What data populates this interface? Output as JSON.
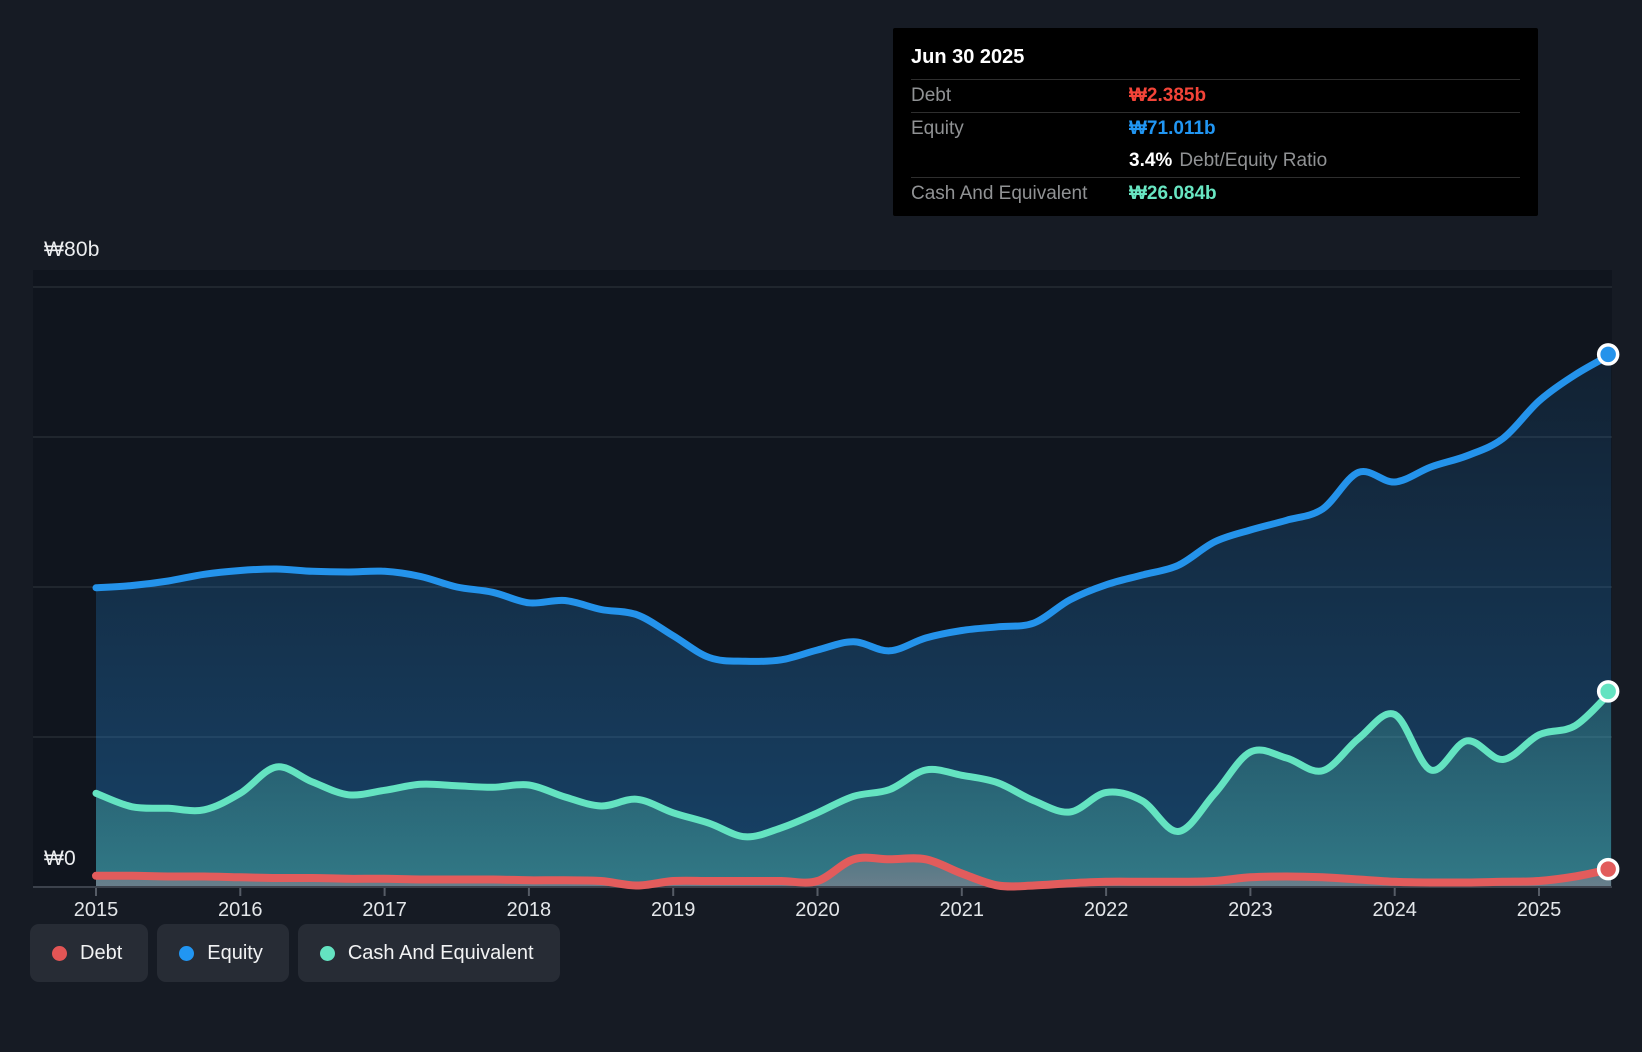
{
  "tooltip": {
    "date": "Jun 30 2025",
    "debt_label": "Debt",
    "debt_value": "₩2.385b",
    "debt_color": "#f34438",
    "equity_label": "Equity",
    "equity_value": "₩71.011b",
    "equity_color": "#2196f3",
    "ratio_value": "3.4%",
    "ratio_label": "Debt/Equity Ratio",
    "cash_label": "Cash And Equivalent",
    "cash_value": "₩26.084b",
    "cash_color": "#68e6c2"
  },
  "legend": {
    "items": [
      {
        "label": "Debt",
        "color": "#e25555"
      },
      {
        "label": "Equity",
        "color": "#2196f3"
      },
      {
        "label": "Cash And Equivalent",
        "color": "#64e3c1"
      }
    ]
  },
  "axes": {
    "y_top_label": "₩80b",
    "y_zero_label": "₩0",
    "x_labels": [
      "2015",
      "2016",
      "2017",
      "2018",
      "2019",
      "2020",
      "2021",
      "2022",
      "2023",
      "2024",
      "2025"
    ]
  },
  "chart_data": {
    "type": "area",
    "title": "Debt, Equity and Cash history (₩ billions)",
    "ylim": [
      0,
      80
    ],
    "xlim": [
      2015,
      2025.5
    ],
    "grid": "horizontal",
    "gridline_values": [
      80,
      60,
      40,
      20
    ],
    "legend_position": "bottom-left",
    "x": [
      2015.0,
      2015.25,
      2015.5,
      2015.75,
      2016.0,
      2016.25,
      2016.5,
      2016.75,
      2017.0,
      2017.25,
      2017.5,
      2017.75,
      2018.0,
      2018.25,
      2018.5,
      2018.75,
      2019.0,
      2019.25,
      2019.5,
      2019.75,
      2020.0,
      2020.25,
      2020.5,
      2020.75,
      2021.0,
      2021.25,
      2021.5,
      2021.75,
      2022.0,
      2022.25,
      2022.5,
      2022.75,
      2023.0,
      2023.25,
      2023.5,
      2023.75,
      2024.0,
      2024.25,
      2024.5,
      2024.75,
      2025.0,
      2025.25,
      2025.5
    ],
    "series": [
      {
        "name": "Equity",
        "color": "#2493eb",
        "values": [
          39.9,
          40.2,
          40.8,
          41.7,
          42.2,
          42.4,
          42.1,
          42.0,
          42.1,
          41.4,
          40.0,
          39.3,
          37.9,
          38.2,
          37.0,
          36.3,
          33.5,
          30.6,
          30.1,
          30.3,
          31.6,
          32.7,
          31.5,
          33.2,
          34.2,
          34.7,
          35.2,
          38.3,
          40.3,
          41.6,
          42.9,
          46.0,
          47.6,
          48.9,
          50.4,
          55.3,
          54.0,
          56.0,
          57.5,
          59.8,
          64.8,
          68.3,
          71.011
        ]
      },
      {
        "name": "Cash And Equivalent",
        "color": "#64e3c1",
        "values": [
          12.5,
          10.7,
          10.5,
          10.3,
          12.5,
          16.0,
          14.0,
          12.3,
          12.9,
          13.7,
          13.5,
          13.3,
          13.6,
          12.0,
          10.8,
          11.7,
          9.9,
          8.5,
          6.7,
          7.9,
          9.9,
          12.1,
          13.0,
          15.6,
          14.9,
          13.9,
          11.5,
          10.0,
          12.6,
          11.5,
          7.4,
          12.4,
          18.0,
          17.2,
          15.5,
          19.8,
          23.0,
          15.6,
          19.5,
          17.0,
          20.3,
          21.5,
          26.084
        ]
      },
      {
        "name": "Debt",
        "color": "#e25c5c",
        "values": [
          1.5,
          1.5,
          1.4,
          1.4,
          1.3,
          1.2,
          1.2,
          1.1,
          1.1,
          1.0,
          1.0,
          1.0,
          0.9,
          0.9,
          0.8,
          0.2,
          0.8,
          0.8,
          0.8,
          0.8,
          0.8,
          3.7,
          3.7,
          3.7,
          1.8,
          0.2,
          0.2,
          0.5,
          0.7,
          0.7,
          0.7,
          0.8,
          1.3,
          1.4,
          1.3,
          1.0,
          0.7,
          0.6,
          0.6,
          0.7,
          0.8,
          1.4,
          2.385
        ]
      }
    ]
  }
}
